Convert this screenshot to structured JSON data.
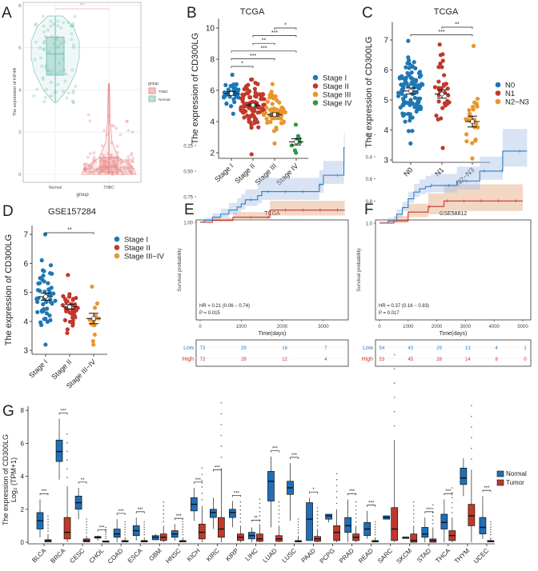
{
  "panel_labels": [
    "A",
    "B",
    "C",
    "D",
    "E",
    "F",
    "G"
  ],
  "colors": {
    "normal_teal": "#7fc4b8",
    "tnbc_pink": "#e88b8b",
    "blue": "#1f77b4",
    "red": "#c0392b",
    "orange": "#e8962e",
    "green": "#2e9a4a",
    "km_low": "#2f7fc1",
    "km_high": "#c8372d",
    "box_normal": "#1f6fb8",
    "box_tumor": "#c0392b"
  },
  "chart_data": [
    {
      "panel": "A",
      "type": "violin",
      "title": "",
      "xlabel": "group",
      "ylabel": "The expression of KIF4A",
      "categories": [
        "Normal",
        "TNBC"
      ],
      "ylim": [
        0,
        8
      ],
      "yticks": [
        0,
        2,
        4,
        6,
        8
      ],
      "grid": true,
      "legend": {
        "title": "group",
        "entries": [
          "TNBC",
          "Normal"
        ],
        "placement": "right"
      },
      "significance": "***",
      "stats": [
        {
          "group": "Normal",
          "median": 5.7,
          "q1": 4.7,
          "q3": 6.5,
          "min": 3.4,
          "max": 7.5,
          "n": 80,
          "color": "#7fc4b8"
        },
        {
          "group": "TNBC",
          "median": 0.35,
          "q1": 0.1,
          "q3": 0.8,
          "min": 0,
          "max": 4.3,
          "n": 160,
          "color": "#e88b8b"
        }
      ]
    },
    {
      "panel": "B",
      "type": "scatter",
      "title": "TCGA",
      "ylabel": "The expression of CD300LG",
      "categories": [
        "Stage I",
        "Stage II",
        "Stage III",
        "Stage IV"
      ],
      "ylim": [
        1.8,
        10.6
      ],
      "yticks": [
        2,
        4,
        6,
        8,
        10
      ],
      "legend": {
        "entries": [
          "Stage I",
          "Stage II",
          "Stage III",
          "Stage IV"
        ],
        "placement": "right"
      },
      "groups": [
        {
          "name": "Stage I",
          "mean": 5.8,
          "sem": 0.12,
          "min": 4.5,
          "max": 7.0,
          "n": 40,
          "color": "#1f77b4"
        },
        {
          "name": "Stage II",
          "mean": 5.05,
          "sem": 0.08,
          "min": 1.9,
          "max": 6.7,
          "n": 95,
          "color": "#c0392b"
        },
        {
          "name": "Stage III",
          "mean": 4.45,
          "sem": 0.1,
          "min": 2.6,
          "max": 6.4,
          "n": 60,
          "color": "#e8962e"
        },
        {
          "name": "Stage IV",
          "mean": 2.7,
          "sem": 0.2,
          "min": 2.0,
          "max": 3.8,
          "n": 9,
          "color": "#2e9a4a"
        }
      ],
      "comparisons": [
        {
          "a": 2,
          "b": 3,
          "label": "*"
        },
        {
          "a": 1,
          "b": 3,
          "label": "***"
        },
        {
          "a": 1,
          "b": 2,
          "label": "**"
        },
        {
          "a": 0,
          "b": 3,
          "label": "***"
        },
        {
          "a": 0,
          "b": 2,
          "label": "***"
        },
        {
          "a": 0,
          "b": 1,
          "label": "*"
        }
      ]
    },
    {
      "panel": "C",
      "type": "scatter",
      "title": "TCGA",
      "ylabel": "The expression of CD300LG",
      "categories": [
        "N0",
        "N1",
        "N2−N3"
      ],
      "ylim": [
        2.95,
        7.6
      ],
      "yticks": [
        3,
        4,
        5,
        6,
        7
      ],
      "legend": {
        "entries": [
          "N0",
          "N1",
          "N2−N3"
        ],
        "placement": "right"
      },
      "groups": [
        {
          "name": "N0",
          "mean": 5.3,
          "sem": 0.1,
          "min": 3.55,
          "max": 6.97,
          "n": 110,
          "color": "#1f77b4"
        },
        {
          "name": "N1",
          "mean": 5.2,
          "sem": 0.14,
          "min": 3.4,
          "max": 6.85,
          "n": 32,
          "color": "#c0392b"
        },
        {
          "name": "N2−N3",
          "mean": 4.28,
          "sem": 0.18,
          "min": 3.05,
          "max": 6.8,
          "n": 26,
          "color": "#e8962e"
        }
      ],
      "comparisons": [
        {
          "a": 1,
          "b": 2,
          "label": "**"
        },
        {
          "a": 0,
          "b": 2,
          "label": "***"
        }
      ]
    },
    {
      "panel": "D",
      "type": "scatter",
      "title": "GSE157284",
      "ylabel": "The expression of CD300LG",
      "categories": [
        "Stage I",
        "Stage II",
        "Stage III−IV"
      ],
      "ylim": [
        2.95,
        7.3
      ],
      "yticks": [
        3,
        4,
        5,
        6,
        7
      ],
      "legend": {
        "entries": [
          "Stage I",
          "Stage II",
          "Stage III−IV"
        ],
        "placement": "right"
      },
      "groups": [
        {
          "name": "Stage I",
          "mean": 4.85,
          "sem": 0.12,
          "min": 3.2,
          "max": 7.0,
          "n": 50,
          "color": "#1f77b4"
        },
        {
          "name": "Stage II",
          "mean": 4.5,
          "sem": 0.08,
          "min": 3.6,
          "max": 5.6,
          "n": 40,
          "color": "#c0392b"
        },
        {
          "name": "Stage III−IV",
          "mean": 4.1,
          "sem": 0.18,
          "min": 3.2,
          "max": 5.2,
          "n": 14,
          "color": "#e8962e"
        }
      ],
      "comparisons": [
        {
          "a": 0,
          "b": 2,
          "label": "**"
        }
      ]
    },
    {
      "panel": "E",
      "type": "line",
      "title": "TCGA",
      "xlabel": "Time(days)",
      "ylabel": "Survival probability",
      "xlim": [
        0,
        3600
      ],
      "xticks": [
        0,
        1000,
        2000,
        3000
      ],
      "ylim": [
        0.13,
        1.0
      ],
      "yticks": [
        0.25,
        0.5,
        0.75,
        1.0
      ],
      "ytick_labels": [
        "0.25",
        "0.50",
        "0.75",
        "1.00"
      ],
      "annotation": {
        "hr": "HR = 0.21 (0.06 − 0.74)",
        "p": "P = 0.015"
      },
      "series": [
        {
          "name": "Low",
          "color": "#2f7fc1",
          "x": [
            0,
            100,
            300,
            500,
            700,
            900,
            1000,
            1100,
            1400,
            1500,
            2900,
            3000,
            3500,
            3520
          ],
          "y": [
            1,
            0.98,
            0.95,
            0.92,
            0.88,
            0.85,
            0.82,
            0.78,
            0.74,
            0.7,
            0.63,
            0.54,
            0.27,
            0.27
          ]
        },
        {
          "name": "High",
          "color": "#c8372d",
          "x": [
            0,
            300,
            800,
            1700,
            3520
          ],
          "y": [
            1,
            0.98,
            0.95,
            0.88,
            0.88
          ]
        }
      ],
      "risk_table": {
        "times": [
          0,
          1000,
          2000,
          3000
        ],
        "rows": [
          {
            "name": "Low",
            "values": [
              73,
              29,
              16,
              7
            ]
          },
          {
            "name": "High",
            "values": [
              72,
              29,
              12,
              4
            ]
          }
        ]
      }
    },
    {
      "panel": "F",
      "type": "line",
      "title": "GSE58812",
      "xlabel": "Time(days)",
      "ylabel": "Survival probability",
      "xlim": [
        0,
        5200
      ],
      "xticks": [
        0,
        1000,
        2000,
        3000,
        4000,
        5000
      ],
      "ylim": [
        0.15,
        1.0
      ],
      "yticks": [
        0.2,
        0.4,
        0.6,
        0.8,
        1.0
      ],
      "ytick_labels": [
        "0.2",
        "0.4",
        "0.6",
        "0.8",
        "1.0"
      ],
      "annotation": {
        "hr": "HR = 0.37 (0.16 − 0.83)",
        "p": "P = 0.017"
      },
      "series": [
        {
          "name": "Low",
          "color": "#2f7fc1",
          "x": [
            0,
            300,
            600,
            800,
            1000,
            1200,
            1400,
            1600,
            1800,
            2700,
            3500,
            4300,
            5150
          ],
          "y": [
            1,
            0.98,
            0.92,
            0.86,
            0.78,
            0.72,
            0.69,
            0.67,
            0.66,
            0.62,
            0.53,
            0.35,
            0.35
          ]
        },
        {
          "name": "High",
          "color": "#c8372d",
          "x": [
            0,
            500,
            1000,
            1700,
            2250,
            5000
          ],
          "y": [
            1,
            0.98,
            0.9,
            0.85,
            0.8,
            0.8
          ]
        }
      ],
      "risk_table": {
        "times": [
          0,
          1000,
          2000,
          3000,
          4000,
          5000
        ],
        "rows": [
          {
            "name": "Low",
            "values": [
              54,
              43,
              29,
              13,
              4,
              1
            ]
          },
          {
            "name": "High",
            "values": [
              53,
              45,
              28,
              14,
              8,
              0
            ]
          }
        ]
      }
    },
    {
      "panel": "G",
      "type": "box",
      "ylabel": "The expression of CD300LG",
      "ylabel2": "Log₂ (TPM+1)",
      "ylim": [
        0,
        8
      ],
      "yticks": [
        0,
        2,
        4,
        6,
        8
      ],
      "legend": {
        "entries": [
          "Normal",
          "Tumor"
        ],
        "placement": "right"
      },
      "categories": [
        "BLCA",
        "BRCA",
        "CESC",
        "CHOL",
        "COAD",
        "ESCA",
        "GBM",
        "HNSC",
        "KICH",
        "KIRC",
        "KIRP",
        "LIHC",
        "LUAD",
        "LUSC",
        "PAAD",
        "PCPG",
        "PRAD",
        "READ",
        "SARC",
        "SKCM",
        "STAD",
        "THCA",
        "THYM",
        "UCEC"
      ],
      "significance": [
        "***",
        "***",
        "**",
        "***",
        "***",
        "***",
        "",
        "***",
        "***",
        "***",
        "***",
        "**",
        "***",
        "***",
        "*",
        "",
        "***",
        "***",
        "",
        "",
        "***",
        "***",
        "",
        "***"
      ],
      "normal": [
        [
          0.3,
          0.8,
          1.3,
          1.8,
          2.6
        ],
        [
          3.8,
          4.9,
          5.5,
          6.2,
          7.5
        ],
        [
          1.4,
          2.0,
          2.4,
          2.8,
          3.3
        ],
        [
          0.1,
          0.25,
          0.3,
          0.35,
          0.4
        ],
        [
          0,
          0.3,
          0.5,
          0.8,
          1.4
        ],
        [
          0.1,
          0.4,
          0.7,
          1.0,
          1.5
        ],
        [
          0.1,
          0.15,
          0.3,
          0.4,
          0.5
        ],
        [
          0.1,
          0.3,
          0.5,
          0.7,
          1.1
        ],
        [
          1.3,
          1.9,
          2.3,
          2.7,
          3.3
        ],
        [
          0.8,
          1.5,
          1.8,
          2.0,
          2.7
        ],
        [
          0.9,
          1.5,
          1.8,
          2.0,
          2.5
        ],
        [
          0,
          0.2,
          0.4,
          0.6,
          0.9
        ],
        [
          0.9,
          2.5,
          3.7,
          4.3,
          5.2
        ],
        [
          1.3,
          2.9,
          3.3,
          3.7,
          4.8
        ],
        [
          0.1,
          0.1,
          1.4,
          2.4,
          2.7
        ],
        [
          1.2,
          1.4,
          1.6,
          1.7,
          1.7
        ],
        [
          0,
          0.6,
          1.0,
          1.5,
          2.6
        ],
        [
          0.2,
          0.4,
          0.8,
          1.2,
          1.9
        ],
        [
          1.4,
          1.4,
          1.5,
          1.6,
          1.6
        ],
        [
          0.3,
          0.3,
          0.3,
          0.3,
          0.3
        ],
        [
          0,
          0.3,
          0.5,
          0.9,
          1.5
        ],
        [
          0,
          0.8,
          1.2,
          1.7,
          2.6
        ],
        [
          2.8,
          3.5,
          3.9,
          4.5,
          5.1
        ],
        [
          0.2,
          0.5,
          0.9,
          1.5,
          2.8
        ]
      ],
      "tumor": [
        [
          0,
          0.02,
          0.1,
          0.15,
          0.5
        ],
        [
          0,
          0.2,
          0.6,
          1.5,
          3.4
        ],
        [
          0,
          0.02,
          0.1,
          0.2,
          0.4
        ],
        [
          0,
          0.02,
          0.05,
          0.08,
          0.1
        ],
        [
          0,
          0.02,
          0.05,
          0.1,
          0.3
        ],
        [
          0,
          0.02,
          0.05,
          0.1,
          0.3
        ],
        [
          0,
          0.1,
          0.3,
          0.5,
          1.0
        ],
        [
          0,
          0.02,
          0.05,
          0.1,
          0.3
        ],
        [
          0,
          0.2,
          0.6,
          1.1,
          2.2
        ],
        [
          0,
          0.3,
          0.8,
          1.5,
          4.5
        ],
        [
          0,
          0.1,
          0.3,
          0.5,
          1.0
        ],
        [
          0,
          0.05,
          0.2,
          0.5,
          1.1
        ],
        [
          0,
          0.05,
          0.2,
          0.4,
          1.0
        ],
        [
          0,
          0.02,
          0.05,
          0.1,
          0.4
        ],
        [
          0,
          0.05,
          0.2,
          0.35,
          0.8
        ],
        [
          0,
          0.1,
          0.6,
          1.0,
          2.0
        ],
        [
          0,
          0.1,
          0.3,
          0.5,
          1.0
        ],
        [
          0,
          0.02,
          0.05,
          0.1,
          0.3
        ],
        [
          0,
          0.1,
          0.8,
          2.1,
          6.2
        ],
        [
          0,
          0,
          0.1,
          0.5,
          1.0
        ],
        [
          0,
          0,
          0.1,
          0.2,
          0.9
        ],
        [
          0,
          0.1,
          0.4,
          0.7,
          1.5
        ],
        [
          0,
          1.0,
          1.6,
          2.3,
          4.4
        ],
        [
          0,
          0.02,
          0.05,
          0.1,
          0.3
        ]
      ]
    }
  ]
}
